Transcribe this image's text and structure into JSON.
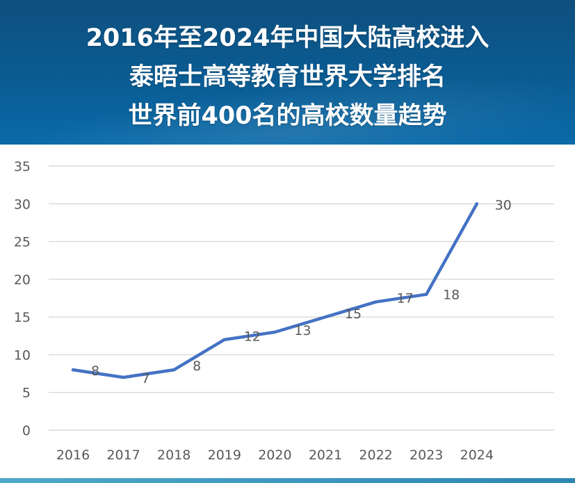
{
  "header": {
    "title_lines": [
      "2016年至2024年中国大陆高校进入",
      "泰晤士高等教育世界大学排名",
      "世界前400名的高校数量趋势"
    ]
  },
  "colors": {
    "header_bg": "#0a5c93",
    "line": "#4472c4",
    "grid": "#d9d9d9",
    "axis_text": "#595959"
  },
  "chart_data": {
    "type": "line",
    "title": "2016年至2024年中国大陆高校进入泰晤士高等教育世界大学排名世界前400名的高校数量趋势",
    "categories": [
      "2016",
      "2017",
      "2018",
      "2019",
      "2020",
      "2021",
      "2022",
      "2023",
      "2024"
    ],
    "series": [
      {
        "values": [
          8,
          7,
          8,
          12,
          13,
          15,
          17,
          18,
          30
        ]
      }
    ],
    "ylim": [
      0,
      35
    ],
    "yticks": [
      0,
      5,
      10,
      15,
      20,
      25,
      30,
      35
    ],
    "grid": true,
    "legend": "none",
    "data_labels": [
      "8",
      "7",
      "8",
      "12",
      "13",
      "15",
      "17",
      "18",
      "30"
    ]
  }
}
